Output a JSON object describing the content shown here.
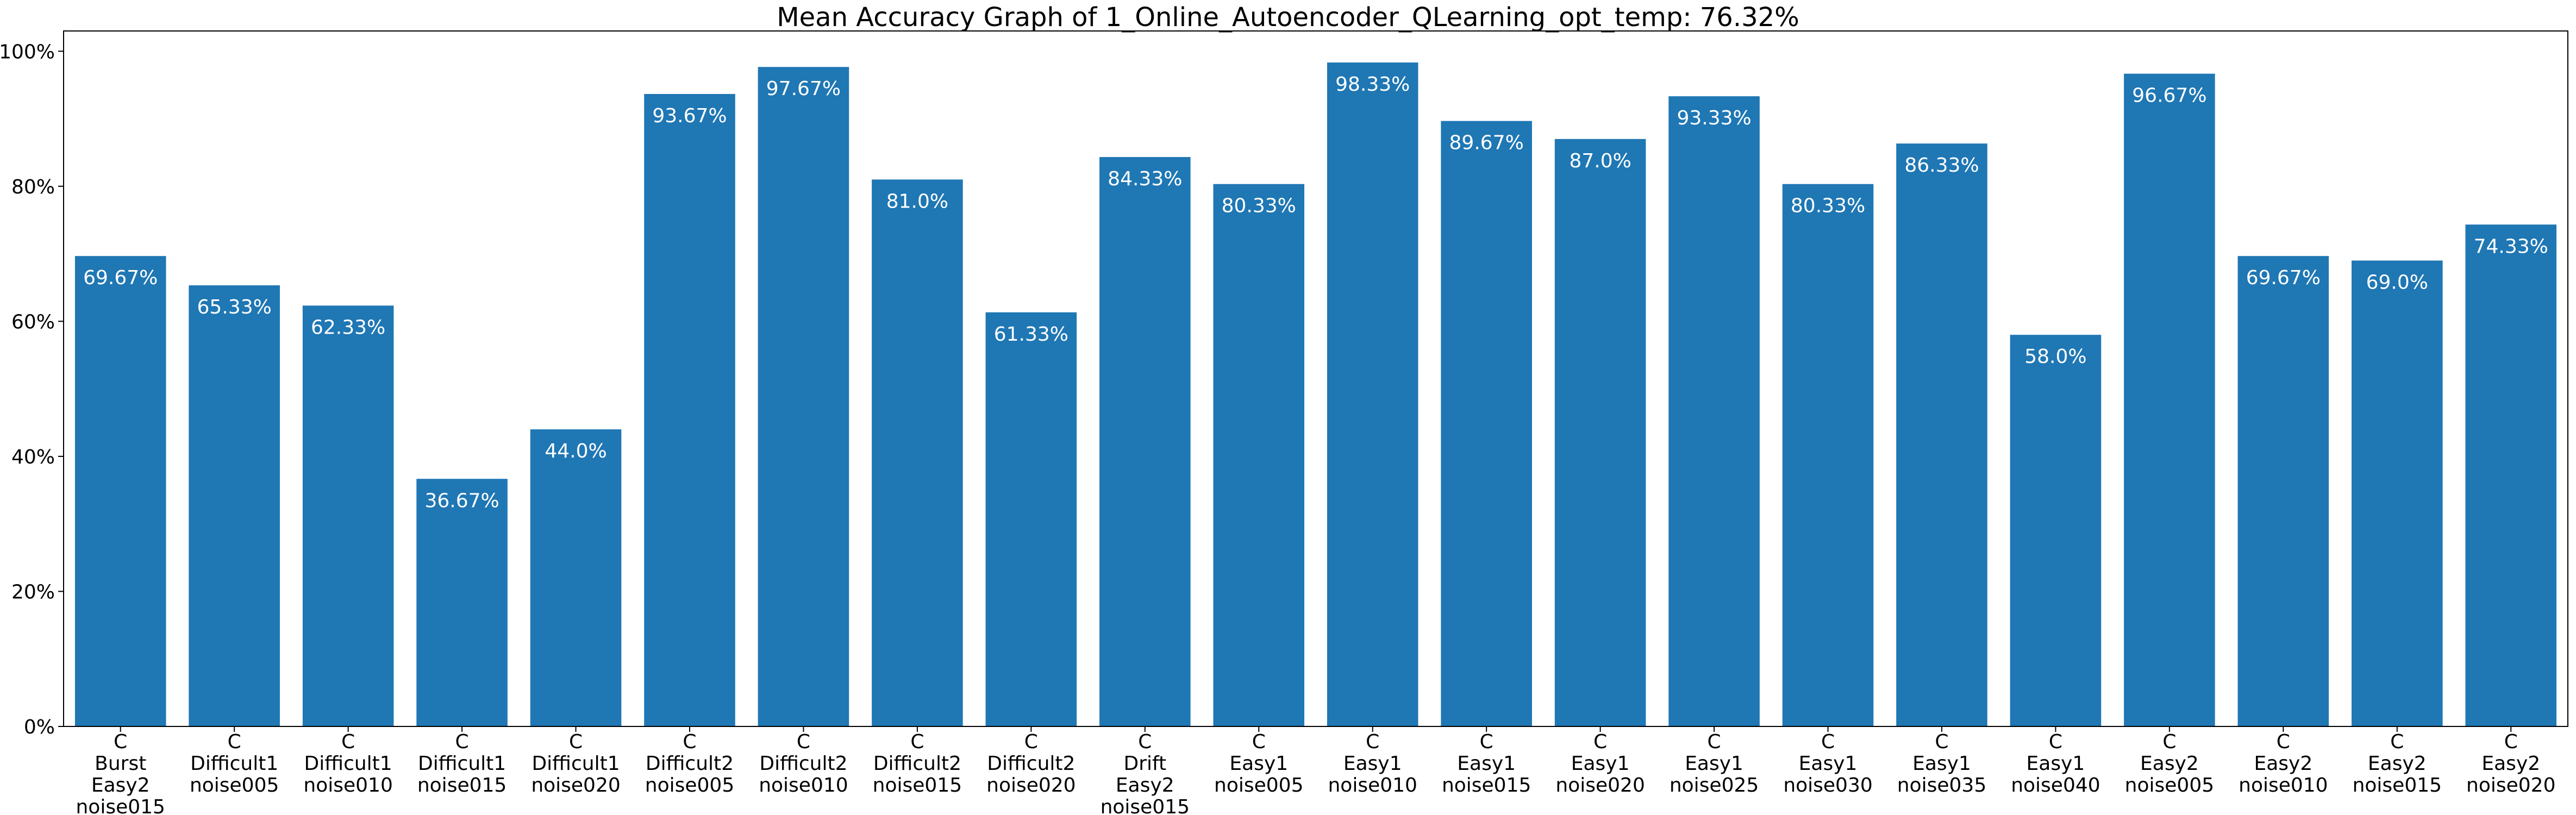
{
  "chart_data": {
    "type": "bar",
    "title": "Mean Accuracy Graph of 1_Online_Autoencoder_QLearning_opt_temp: 76.32%",
    "xlabel": "",
    "ylabel": "",
    "ylim": [
      0,
      103
    ],
    "yticks": [
      0,
      20,
      40,
      60,
      80,
      100
    ],
    "ytick_labels": [
      "0%",
      "20%",
      "40%",
      "60%",
      "80%",
      "100%"
    ],
    "grid": false,
    "bar_color": "#1f77b4",
    "data_label_color": "#ffffff",
    "categories": [
      [
        "C",
        "Burst",
        "Easy2",
        "noise015"
      ],
      [
        "C",
        "Difficult1",
        "noise005"
      ],
      [
        "C",
        "Difficult1",
        "noise010"
      ],
      [
        "C",
        "Difficult1",
        "noise015"
      ],
      [
        "C",
        "Difficult1",
        "noise020"
      ],
      [
        "C",
        "Difficult2",
        "noise005"
      ],
      [
        "C",
        "Difficult2",
        "noise010"
      ],
      [
        "C",
        "Difficult2",
        "noise015"
      ],
      [
        "C",
        "Difficult2",
        "noise020"
      ],
      [
        "C",
        "Drift",
        "Easy2",
        "noise015"
      ],
      [
        "C",
        "Easy1",
        "noise005"
      ],
      [
        "C",
        "Easy1",
        "noise010"
      ],
      [
        "C",
        "Easy1",
        "noise015"
      ],
      [
        "C",
        "Easy1",
        "noise020"
      ],
      [
        "C",
        "Easy1",
        "noise025"
      ],
      [
        "C",
        "Easy1",
        "noise030"
      ],
      [
        "C",
        "Easy1",
        "noise035"
      ],
      [
        "C",
        "Easy1",
        "noise040"
      ],
      [
        "C",
        "Easy2",
        "noise005"
      ],
      [
        "C",
        "Easy2",
        "noise010"
      ],
      [
        "C",
        "Easy2",
        "noise015"
      ],
      [
        "C",
        "Easy2",
        "noise020"
      ]
    ],
    "values": [
      69.67,
      65.33,
      62.33,
      36.67,
      44.0,
      93.67,
      97.67,
      81.0,
      61.33,
      84.33,
      80.33,
      98.33,
      89.67,
      87.0,
      93.33,
      80.33,
      86.33,
      58.0,
      96.67,
      69.67,
      69.0,
      74.33
    ],
    "data_labels": [
      "69.67%",
      "65.33%",
      "62.33%",
      "36.67%",
      "44.0%",
      "93.67%",
      "97.67%",
      "81.0%",
      "61.33%",
      "84.33%",
      "80.33%",
      "98.33%",
      "89.67%",
      "87.0%",
      "93.33%",
      "80.33%",
      "86.33%",
      "58.0%",
      "96.67%",
      "69.67%",
      "69.0%",
      "74.33%"
    ]
  }
}
